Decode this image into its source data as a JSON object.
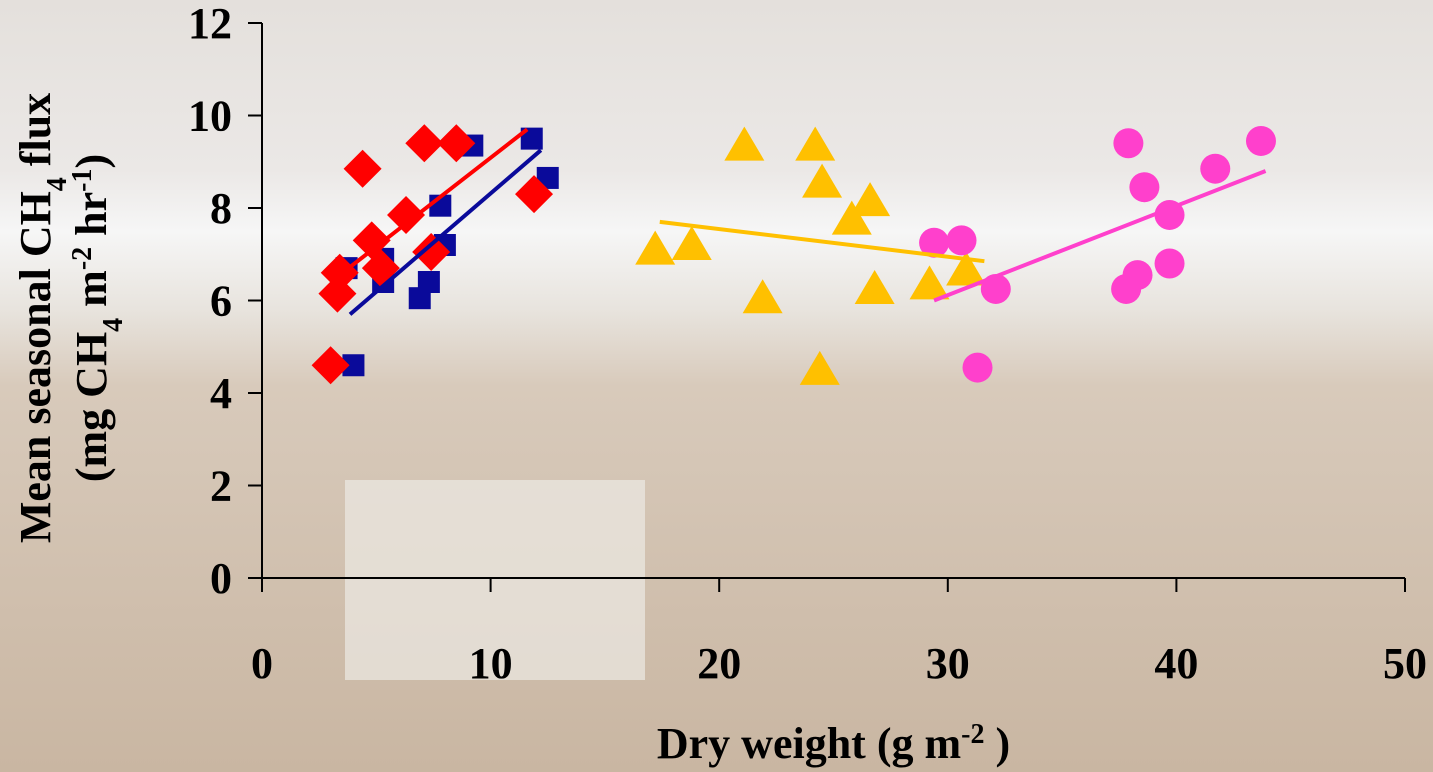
{
  "chart_data": {
    "type": "scatter",
    "xlabel": [
      {
        "text": "Dry weight (g m"
      },
      {
        "text": "-2",
        "shift": "super"
      },
      {
        "text": " )"
      }
    ],
    "ylabel": [
      [
        {
          "text": "Mean seasonal CH"
        },
        {
          "text": "4",
          "shift": "sub"
        },
        {
          "text": " flux"
        }
      ],
      [
        {
          "text": "(mg CH"
        },
        {
          "text": "4",
          "shift": "sub"
        },
        {
          "text": " m"
        },
        {
          "text": "-2",
          "shift": "super"
        },
        {
          "text": " hr"
        },
        {
          "text": "-1",
          "shift": "super"
        },
        {
          "text": ")"
        }
      ]
    ],
    "xlim": [
      0,
      50
    ],
    "ylim": [
      0,
      12
    ],
    "xticks": [
      0,
      10,
      20,
      30,
      40,
      50
    ],
    "yticks": [
      0,
      2,
      4,
      6,
      8,
      10,
      12
    ],
    "series": [
      {
        "color": "#0a0a9a",
        "marker": "square",
        "x": [
          4.0,
          3.7,
          5.3,
          5.3,
          6.9,
          7.3,
          7.8,
          8.0,
          9.2,
          11.8,
          12.5
        ],
        "values": [
          4.6,
          6.7,
          6.4,
          6.9,
          6.05,
          6.4,
          8.05,
          7.2,
          9.35,
          9.5,
          8.65
        ],
        "trend": {
          "x": [
            3.85,
            12.2
          ],
          "y": [
            5.7,
            9.25
          ]
        }
      },
      {
        "color": "#ff0000",
        "marker": "diamond",
        "x": [
          3.0,
          3.3,
          3.4,
          4.4,
          4.8,
          5.2,
          6.3,
          7.1,
          7.4,
          8.5,
          11.9
        ],
        "values": [
          4.6,
          6.15,
          6.6,
          8.85,
          7.3,
          6.7,
          7.85,
          9.4,
          7.05,
          9.4,
          8.3
        ],
        "trend": {
          "x": [
            3.4,
            11.6
          ],
          "y": [
            6.55,
            9.7
          ]
        }
      },
      {
        "color": "#ffc000",
        "marker": "triangle",
        "x": [
          17.2,
          18.8,
          21.1,
          21.9,
          24.2,
          24.5,
          24.4,
          25.8,
          26.6,
          26.8,
          29.2,
          30.8
        ],
        "values": [
          7.1,
          7.2,
          9.35,
          6.05,
          9.35,
          8.55,
          4.5,
          7.75,
          8.15,
          6.25,
          6.35,
          6.65
        ],
        "trend": {
          "x": [
            17.4,
            31.6
          ],
          "y": [
            7.7,
            6.85
          ]
        }
      },
      {
        "color": "#ff40cc",
        "marker": "circle",
        "x": [
          29.4,
          30.6,
          31.3,
          32.1,
          37.9,
          38.6,
          37.8,
          38.3,
          39.7,
          39.7,
          41.7,
          43.7
        ],
        "values": [
          7.25,
          7.3,
          4.55,
          6.25,
          9.4,
          8.45,
          6.25,
          6.55,
          6.8,
          7.85,
          8.85,
          9.45
        ],
        "trend": {
          "x": [
            29.4,
            43.9
          ],
          "y": [
            6.0,
            8.8
          ]
        }
      }
    ]
  }
}
